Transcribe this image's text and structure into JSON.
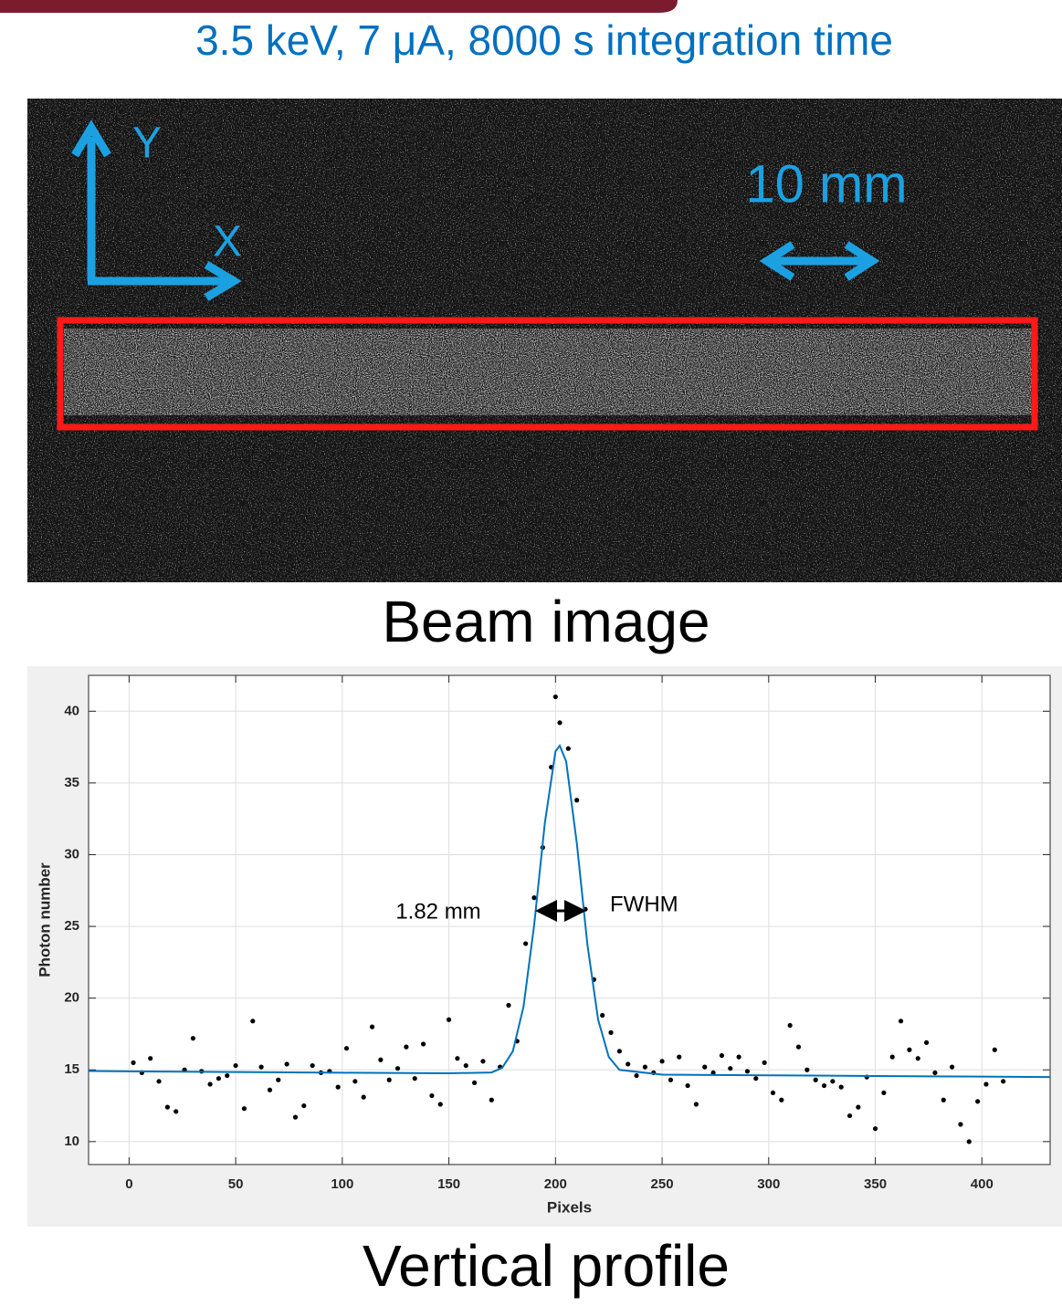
{
  "header": {
    "title": "3.5 keV, 7 μA, 8000 s integration time"
  },
  "beam_image": {
    "axis_y": "Y",
    "axis_x": "X",
    "scale_label": "10 mm",
    "caption": "Beam image"
  },
  "chart_data": {
    "type": "scatter",
    "x_label": "Pixels",
    "y_label": "Photon number",
    "annotations": [
      "1.82 mm",
      "FWHM"
    ],
    "xlim": [
      -19,
      432
    ],
    "ylim": [
      8.4,
      42.5
    ],
    "xticks": [
      0,
      50,
      100,
      150,
      200,
      250,
      300,
      350,
      400
    ],
    "yticks": [
      10,
      15,
      20,
      25,
      30,
      35,
      40
    ],
    "grid": true,
    "series": [
      {
        "type": "scatter",
        "color": "#000000",
        "x": [
          2,
          6,
          10,
          14,
          18,
          22,
          26,
          30,
          34,
          38,
          42,
          46,
          50,
          54,
          58,
          62,
          66,
          70,
          74,
          78,
          82,
          86,
          90,
          94,
          98,
          102,
          106,
          110,
          114,
          118,
          122,
          126,
          130,
          134,
          138,
          142,
          146,
          150,
          154,
          158,
          162,
          166,
          170,
          174,
          178,
          182,
          186,
          190,
          194,
          198,
          200,
          202,
          206,
          210,
          214,
          218,
          222,
          226,
          230,
          234,
          238,
          242,
          246,
          250,
          254,
          258,
          262,
          266,
          270,
          274,
          278,
          282,
          286,
          290,
          294,
          298,
          302,
          306,
          310,
          314,
          318,
          322,
          326,
          330,
          334,
          338,
          342,
          346,
          350,
          354,
          358,
          362,
          366,
          370,
          374,
          378,
          382,
          386,
          390,
          394,
          398,
          402,
          406,
          410
        ],
        "values": [
          15.5,
          14.8,
          15.8,
          14.2,
          12.4,
          12.1,
          15.0,
          17.2,
          14.9,
          14.0,
          14.4,
          14.6,
          15.3,
          12.3,
          18.4,
          15.2,
          13.6,
          14.3,
          15.4,
          11.7,
          12.5,
          15.3,
          14.8,
          14.9,
          13.8,
          16.5,
          14.2,
          13.1,
          18.0,
          15.7,
          14.3,
          15.1,
          16.6,
          14.4,
          16.8,
          13.2,
          12.6,
          18.5,
          15.8,
          15.3,
          14.1,
          15.6,
          12.9,
          15.2,
          19.5,
          17.0,
          23.8,
          27.0,
          30.5,
          36.1,
          41.0,
          39.2,
          37.4,
          33.8,
          26.2,
          21.3,
          18.8,
          17.6,
          16.3,
          15.4,
          14.6,
          15.2,
          14.8,
          15.6,
          14.3,
          15.9,
          13.9,
          12.6,
          15.2,
          14.8,
          16.0,
          15.1,
          15.9,
          14.9,
          14.4,
          15.5,
          13.4,
          12.9,
          18.1,
          16.6,
          15.0,
          14.3,
          13.9,
          14.2,
          13.8,
          11.8,
          12.4,
          14.5,
          10.9,
          13.4,
          15.9,
          18.4,
          16.4,
          15.8,
          16.9,
          14.8,
          12.9,
          15.2,
          11.2,
          10.0,
          12.8,
          14.0,
          16.4,
          14.2
        ]
      },
      {
        "type": "line",
        "color": "#0072bd",
        "x": [
          -19,
          0,
          50,
          100,
          150,
          170,
          175,
          180,
          185,
          190,
          195,
          200,
          202,
          205,
          210,
          215,
          220,
          225,
          230,
          250,
          300,
          350,
          400,
          432
        ],
        "values": [
          14.92,
          14.9,
          14.85,
          14.8,
          14.76,
          14.82,
          15.14,
          16.3,
          19.4,
          25.1,
          32.2,
          37.2,
          37.6,
          36.5,
          30.8,
          23.7,
          18.5,
          15.9,
          15.0,
          14.67,
          14.62,
          14.57,
          14.53,
          14.5
        ]
      }
    ]
  },
  "profile_caption": "Vertical profile"
}
